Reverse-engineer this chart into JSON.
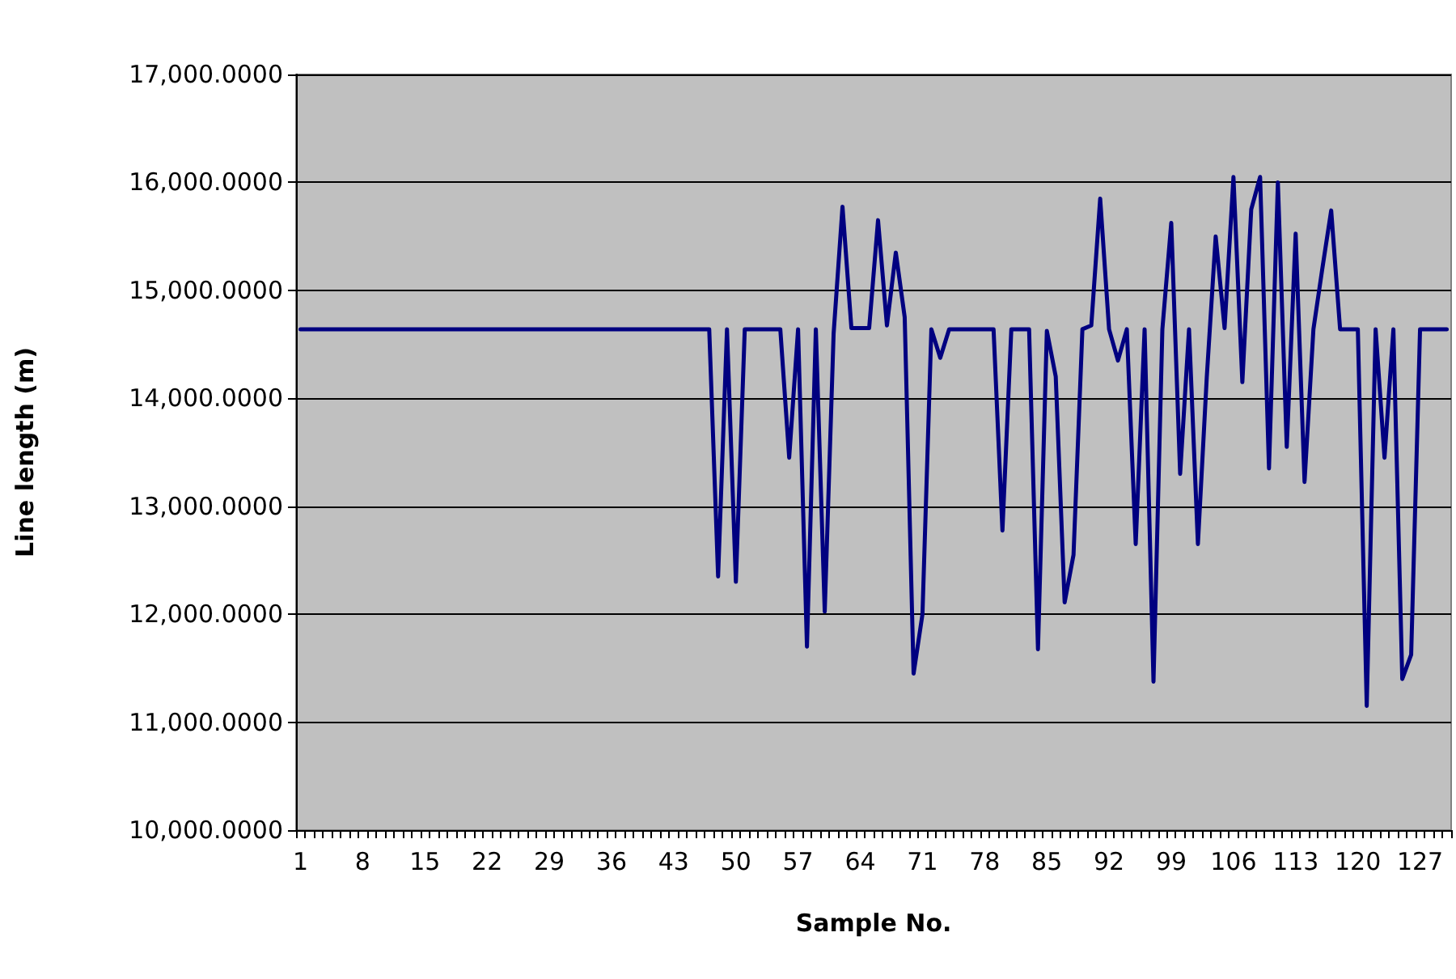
{
  "chart_data": {
    "type": "line",
    "xlabel": "Sample No.",
    "ylabel": "Line length (m)",
    "categories": [
      "1",
      null,
      null,
      null,
      null,
      null,
      null,
      "8",
      null,
      null,
      null,
      null,
      null,
      null,
      "15",
      null,
      null,
      null,
      null,
      null,
      null,
      "22",
      null,
      null,
      null,
      null,
      null,
      null,
      "29",
      null,
      null,
      null,
      null,
      null,
      null,
      "36",
      null,
      null,
      null,
      null,
      null,
      null,
      "43",
      null,
      null,
      null,
      null,
      null,
      null,
      "50",
      null,
      null,
      null,
      null,
      null,
      null,
      "57",
      null,
      null,
      null,
      null,
      null,
      null,
      "64",
      null,
      null,
      null,
      null,
      null,
      null,
      "71",
      null,
      null,
      null,
      null,
      null,
      null,
      "78",
      null,
      null,
      null,
      null,
      null,
      null,
      "85",
      null,
      null,
      null,
      null,
      null,
      null,
      "92",
      null,
      null,
      null,
      null,
      null,
      null,
      "99",
      null,
      null,
      null,
      null,
      null,
      null,
      "106",
      null,
      null,
      null,
      null,
      null,
      null,
      "113",
      null,
      null,
      null,
      null,
      null,
      null,
      "120",
      null,
      null,
      null,
      null,
      null,
      null,
      "127",
      null,
      null,
      null
    ],
    "series": [
      {
        "color": "#000080",
        "values": [
          14640,
          14640,
          14640,
          14640,
          14640,
          14640,
          14640,
          14640,
          14640,
          14640,
          14640,
          14640,
          14640,
          14640,
          14640,
          14640,
          14640,
          14640,
          14640,
          14640,
          14640,
          14640,
          14640,
          14640,
          14640,
          14640,
          14640,
          14640,
          14640,
          14640,
          14640,
          14640,
          14640,
          14640,
          14640,
          14640,
          14640,
          14640,
          14640,
          14640,
          14640,
          14640,
          14640,
          14640,
          14640,
          14640,
          14640,
          12350,
          14640,
          12300,
          14640,
          14640,
          14640,
          14640,
          14640,
          13450,
          14640,
          11700,
          14640,
          12025,
          14600,
          15775,
          14650,
          14650,
          14650,
          15650,
          14675,
          15350,
          14750,
          11450,
          12000,
          14640,
          14375,
          14640,
          14640,
          14640,
          14640,
          14640,
          14640,
          12775,
          14640,
          14640,
          14640,
          11675,
          14625,
          14200,
          12110,
          12550,
          14640,
          14675,
          15850,
          14640,
          14350,
          14640,
          12650,
          14640,
          11375,
          14640,
          15625,
          13300,
          14640,
          12650,
          14200,
          15500,
          14650,
          16050,
          14150,
          15750,
          16050,
          13350,
          16000,
          13550,
          15525,
          13225,
          14640,
          15200,
          15740,
          14640,
          14640,
          14640,
          11150,
          14640,
          13450,
          14640,
          11400,
          11625,
          14640,
          14640,
          14640,
          14640
        ]
      }
    ],
    "ylim": [
      10000,
      17000
    ],
    "yticks": [
      {
        "value": 10000,
        "label": "10,000.0000"
      },
      {
        "value": 11000,
        "label": "11,000.0000"
      },
      {
        "value": 12000,
        "label": "12,000.0000"
      },
      {
        "value": 13000,
        "label": "13,000.0000"
      },
      {
        "value": 14000,
        "label": "14,000.0000"
      },
      {
        "value": 15000,
        "label": "15,000.0000"
      },
      {
        "value": 16000,
        "label": "16,000.0000"
      },
      {
        "value": 17000,
        "label": "17,000.0000"
      }
    ],
    "grid": "y",
    "marker": "none",
    "line_style": "solid"
  }
}
